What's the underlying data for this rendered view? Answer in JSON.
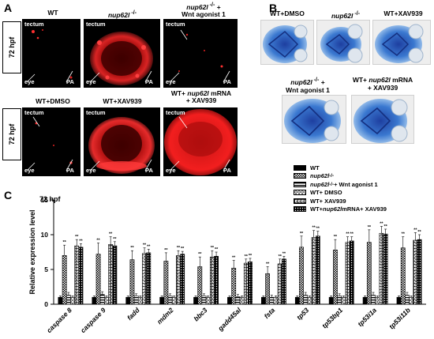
{
  "panels": {
    "a": {
      "letter": "A"
    },
    "b": {
      "letter": "B"
    },
    "c": {
      "letter": "C"
    }
  },
  "panel_a": {
    "hpf_label": "72 hpf",
    "row1": [
      {
        "title": "WT",
        "labels": [
          "tectum",
          "eye",
          "PA"
        ]
      },
      {
        "title_italic": "nup62l",
        "title_sup": " -/-",
        "labels": [
          "tectum",
          "eye",
          "PA"
        ]
      },
      {
        "title_italic": "nup62l",
        "title_sup": " -/-",
        "title_suffix": " +",
        "title_line2": "Wnt agonist 1",
        "labels": [
          "tectum",
          "eye",
          "PA"
        ]
      }
    ],
    "row2": [
      {
        "title": "WT+DMSO",
        "labels": [
          "tectum",
          "eye",
          "PA"
        ]
      },
      {
        "title": "WT+XAV939",
        "labels": [
          "tectum",
          "eye",
          "PA"
        ]
      },
      {
        "title_prefix": "WT+ ",
        "title_italic": "nup62l",
        "title_suffix": " mRNA",
        "title_line2": "+ XAV939",
        "labels": [
          "tectum",
          "eye",
          "PA"
        ]
      }
    ]
  },
  "panel_b": {
    "row1": [
      {
        "title": "WT+DMSO"
      },
      {
        "title_italic": "nup62l",
        "title_sup": " -/-"
      },
      {
        "title": "WT+XAV939"
      }
    ],
    "row2": [
      {
        "title_italic": "nup62l",
        "title_sup": " -/-",
        "title_suffix": " +",
        "title_line2": "Wnt agonist 1"
      },
      {
        "title_prefix": "WT+ ",
        "title_italic": "nup62l",
        "title_suffix": " mRNA",
        "title_line2": "+ XAV939"
      }
    ]
  },
  "panel_c": {
    "hpf_label": "72 hpf",
    "legend": [
      {
        "prefix": "",
        "italic": "",
        "sup": "",
        "suffix": "WT"
      },
      {
        "prefix": "",
        "italic": "nup62l",
        "sup": " -/-",
        "suffix": ""
      },
      {
        "prefix": "",
        "italic": "nup62l",
        "sup": " -/-",
        "suffix": " + Wnt agonist 1"
      },
      {
        "prefix": "WT+ DMSO",
        "italic": "",
        "sup": "",
        "suffix": ""
      },
      {
        "prefix": "WT+ XAV939",
        "italic": "",
        "sup": "",
        "suffix": ""
      },
      {
        "prefix": "WT+ ",
        "italic": "nup62l",
        "sup": "",
        "suffix": " mRNA+ XAV939"
      }
    ]
  },
  "chart_data": {
    "type": "bar",
    "ylabel": "Relative expression level",
    "ylim": [
      0,
      15
    ],
    "yticks": [
      0,
      5,
      10,
      15
    ],
    "categories": [
      "caspase 8",
      "caspase 9",
      "fadd",
      "mdm2",
      "bbc3",
      "gadd45al",
      "fsta",
      "tp53",
      "tp53bp1",
      "tp53i1a",
      "tp53i11b"
    ],
    "series": [
      {
        "name": "WT",
        "values": [
          1,
          1,
          1,
          1,
          1,
          1,
          1,
          1,
          1,
          1,
          1
        ],
        "errors": [
          0.2,
          0.2,
          0.2,
          0.2,
          0.2,
          0.2,
          0.2,
          0.2,
          0.2,
          0.2,
          0.2
        ]
      },
      {
        "name": "nup62l -/-",
        "values": [
          7.0,
          7.2,
          6.4,
          6.2,
          5.4,
          5.2,
          4.4,
          8.2,
          7.8,
          8.9,
          8.1
        ],
        "errors": [
          1.5,
          1.6,
          1.3,
          1.2,
          1.4,
          1.1,
          1.0,
          1.6,
          1.5,
          1.8,
          1.6
        ]
      },
      {
        "name": "nup62l -/- + Wnt agonist 1",
        "values": [
          1.3,
          1.4,
          1.2,
          1.2,
          1.2,
          1.1,
          1.0,
          1.3,
          1.2,
          1.3,
          1.3
        ],
        "errors": [
          0.4,
          0.4,
          0.3,
          0.3,
          0.3,
          0.3,
          0.3,
          0.4,
          0.3,
          0.4,
          0.4
        ]
      },
      {
        "name": "WT+ DMSO",
        "values": [
          1,
          1,
          1,
          1,
          1,
          1,
          1,
          1,
          1,
          1,
          1
        ],
        "errors": [
          0.2,
          0.2,
          0.2,
          0.2,
          0.2,
          0.2,
          0.2,
          0.2,
          0.2,
          0.2,
          0.2
        ]
      },
      {
        "name": "WT+ XAV939",
        "values": [
          8.4,
          8.6,
          7.3,
          7.0,
          6.8,
          5.9,
          5.8,
          9.6,
          8.9,
          10.2,
          9.2
        ],
        "errors": [
          0.9,
          1.1,
          0.8,
          0.7,
          0.9,
          0.6,
          0.7,
          1.0,
          0.8,
          1.0,
          1.1
        ]
      },
      {
        "name": "WT+ nup62l mRNA+ XAV939",
        "values": [
          8.2,
          8.4,
          7.4,
          7.2,
          6.9,
          6.1,
          6.5,
          9.8,
          9.1,
          10.1,
          9.3
        ],
        "errors": [
          0.5,
          0.6,
          0.5,
          0.4,
          0.6,
          0.5,
          0.4,
          0.7,
          0.6,
          0.7,
          0.7
        ]
      }
    ],
    "significance_marker": "**",
    "significant_series": [
      1,
      4,
      5
    ]
  }
}
